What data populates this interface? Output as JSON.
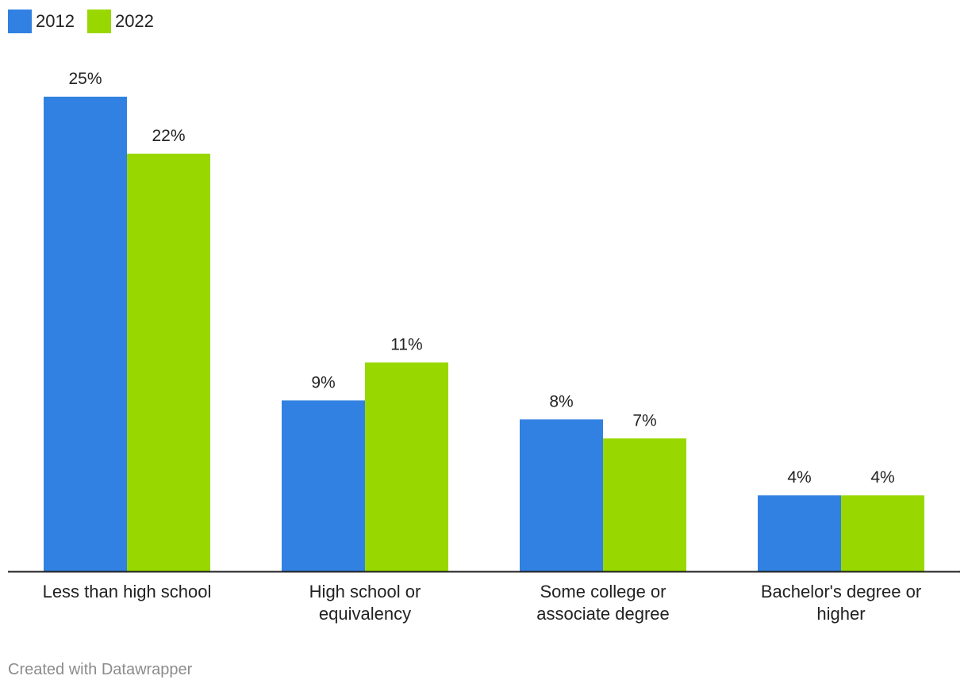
{
  "chart_data": {
    "type": "bar",
    "categories": [
      [
        "Less than high school"
      ],
      [
        "High school or",
        "equivalency"
      ],
      [
        "Some college or",
        "associate degree"
      ],
      [
        "Bachelor's degree or",
        "higher"
      ]
    ],
    "series": [
      {
        "name": "2012",
        "color": "#3181e2",
        "values": [
          25,
          9,
          8,
          4
        ],
        "labels": [
          "25%",
          "9%",
          "8%",
          "4%"
        ]
      },
      {
        "name": "2022",
        "color": "#98d800",
        "values": [
          22,
          11,
          7,
          4
        ],
        "labels": [
          "22%",
          "11%",
          "7%",
          "4%"
        ]
      }
    ],
    "ylim": [
      0,
      25
    ],
    "grid": false,
    "legend": "top-left"
  },
  "footer": {
    "credit": "Created with Datawrapper"
  }
}
